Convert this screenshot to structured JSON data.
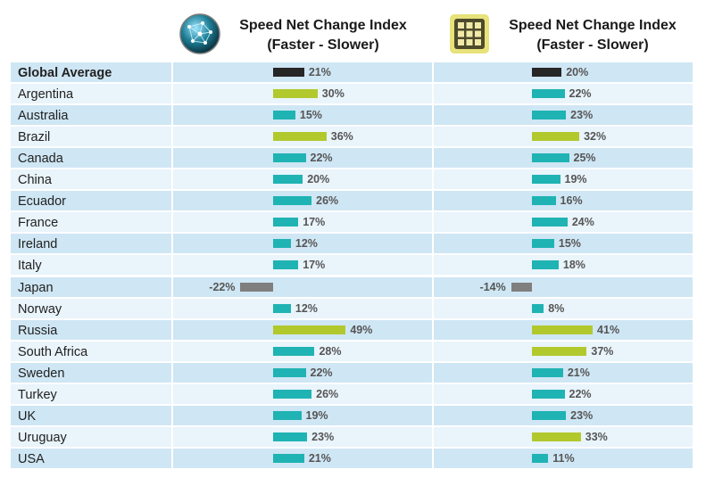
{
  "colors": {
    "row_band": "#cfe6f4",
    "row_light": "#e9f4fb",
    "global": "#262626",
    "teal": "#1fb3b3",
    "green": "#b2c92e",
    "negative": "#7f7f7f"
  },
  "chart_data": {
    "type": "bar",
    "panels": [
      {
        "title_line1": "Speed Net Change Index",
        "title_line2": "(Faster - Slower)",
        "icon": "globe-network-icon",
        "key": "panel_1"
      },
      {
        "title_line1": "Speed Net Change Index",
        "title_line2": "(Faster - Slower)",
        "icon": "grid-app-icon",
        "key": "panel_2"
      }
    ],
    "categories": [
      "Global Average",
      "Argentina",
      "Australia",
      "Brazil",
      "Canada",
      "China",
      "Ecuador",
      "France",
      "Ireland",
      "Italy",
      "Japan",
      "Norway",
      "Russia",
      "South Africa",
      "Sweden",
      "Turkey",
      "UK",
      "Uruguay",
      "USA"
    ],
    "series": [
      {
        "values": [
          21,
          30,
          15,
          36,
          22,
          20,
          26,
          17,
          12,
          17,
          -22,
          12,
          49,
          28,
          22,
          26,
          19,
          23,
          21
        ],
        "labels": [
          "21%",
          "30%",
          "15%",
          "36%",
          "22%",
          "20%",
          "26%",
          "17%",
          "12%",
          "17%",
          "-22%",
          "12%",
          "49%",
          "28%",
          "22%",
          "26%",
          "19%",
          "23%",
          "21%"
        ],
        "bar_colors": [
          "global",
          "green",
          "teal",
          "green",
          "teal",
          "teal",
          "teal",
          "teal",
          "teal",
          "teal",
          "negative",
          "teal",
          "green",
          "teal",
          "teal",
          "teal",
          "teal",
          "teal",
          "teal"
        ]
      },
      {
        "values": [
          20,
          22,
          23,
          32,
          25,
          19,
          16,
          24,
          15,
          18,
          -14,
          8,
          41,
          37,
          21,
          22,
          23,
          33,
          11
        ],
        "labels": [
          "20%",
          "22%",
          "23%",
          "32%",
          "25%",
          "19%",
          "16%",
          "24%",
          "15%",
          "18%",
          "-14%",
          "8%",
          "41%",
          "37%",
          "21%",
          "22%",
          "23%",
          "33%",
          "11%"
        ],
        "bar_colors": [
          "global",
          "teal",
          "teal",
          "green",
          "teal",
          "teal",
          "teal",
          "teal",
          "teal",
          "teal",
          "negative",
          "teal",
          "green",
          "green",
          "teal",
          "teal",
          "teal",
          "green",
          "teal"
        ]
      }
    ],
    "bold_categories": [
      "Global Average"
    ],
    "xlim": [
      -30,
      60
    ],
    "grid": false,
    "legend": "none"
  }
}
